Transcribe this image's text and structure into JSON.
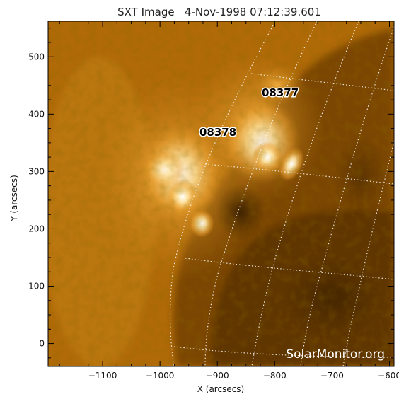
{
  "title": "SXT Image   4-Nov-1998 07:12:39.601",
  "xaxis": {
    "label": "X (arcsecs)",
    "ticks": [
      {
        "value": -1100,
        "label": "−1100"
      },
      {
        "value": -1000,
        "label": "−1000"
      },
      {
        "value": -900,
        "label": "−900"
      },
      {
        "value": -800,
        "label": "−800"
      },
      {
        "value": -700,
        "label": "−700"
      },
      {
        "value": -600,
        "label": "−600"
      }
    ],
    "range": [
      -1195,
      -592
    ]
  },
  "yaxis": {
    "label": "Y (arcsecs)",
    "ticks": [
      {
        "value": 0,
        "label": "0"
      },
      {
        "value": 100,
        "label": "100"
      },
      {
        "value": 200,
        "label": "200"
      },
      {
        "value": 300,
        "label": "300"
      },
      {
        "value": 400,
        "label": "400"
      },
      {
        "value": 500,
        "label": "500"
      }
    ],
    "range": [
      -40,
      562
    ]
  },
  "regions": [
    {
      "label": "08377"
    },
    {
      "label": "08378"
    }
  ],
  "watermark": "SolarMonitor.org",
  "colors": {
    "image_base": "#b76e06",
    "highlight": "#fff6d8",
    "dark": "#3d2300"
  }
}
